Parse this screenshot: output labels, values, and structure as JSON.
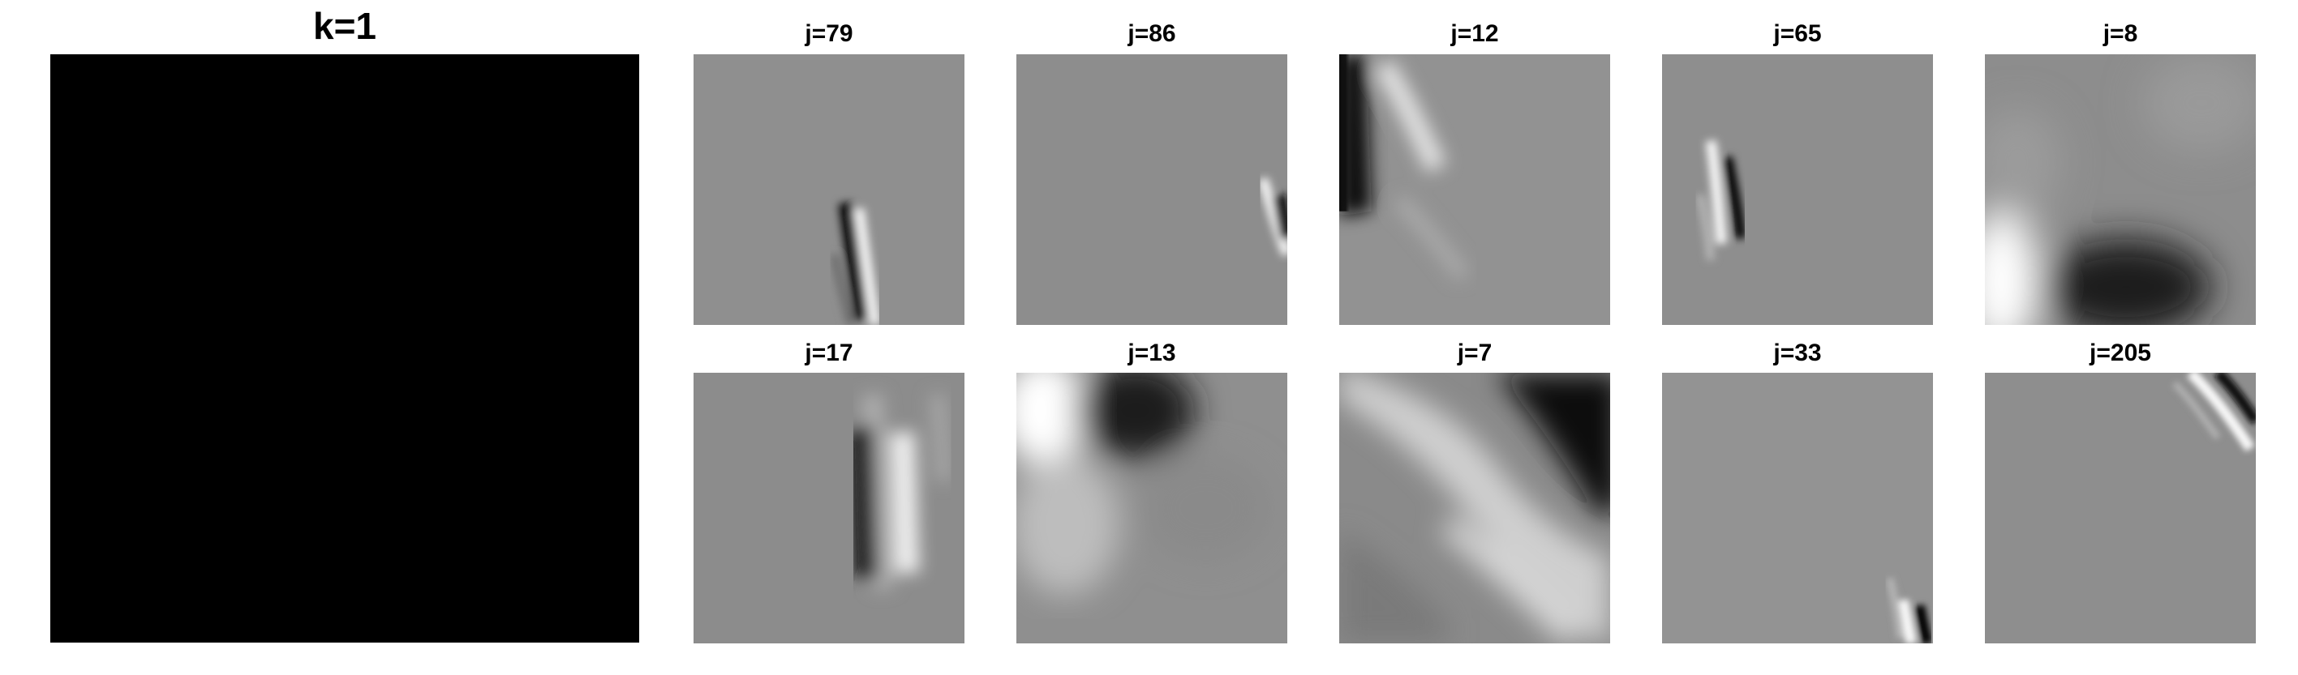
{
  "figure": {
    "main_title": "k=1",
    "tiles": [
      {
        "id": "t1",
        "label": "j=79"
      },
      {
        "id": "t2",
        "label": "j=86"
      },
      {
        "id": "t3",
        "label": "j=12"
      },
      {
        "id": "t4",
        "label": "j=65"
      },
      {
        "id": "t5",
        "label": "j=8"
      },
      {
        "id": "t6",
        "label": "j=17"
      },
      {
        "id": "t7",
        "label": "j=13"
      },
      {
        "id": "t8",
        "label": "j=7"
      },
      {
        "id": "t9",
        "label": "j=33"
      },
      {
        "id": "t10",
        "label": "j=205"
      }
    ]
  },
  "colors": {
    "background": "#ffffff",
    "main_panel": "#000000",
    "tile_gray": "#8c8c8c"
  }
}
